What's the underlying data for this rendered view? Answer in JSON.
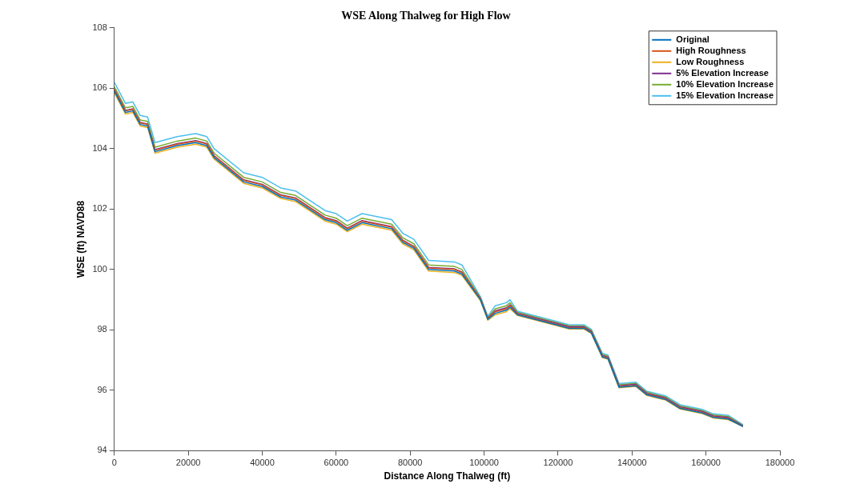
{
  "chart_data": {
    "type": "line",
    "title": "WSE Along Thalweg for High Flow",
    "xlabel": "Distance Along Thalweg (ft)",
    "ylabel": "WSE (ft) NAVD88",
    "x": [
      0,
      3000,
      5000,
      7000,
      9000,
      11000,
      17000,
      22000,
      25000,
      27000,
      35000,
      40000,
      45000,
      49000,
      57000,
      60000,
      63000,
      67000,
      75000,
      78000,
      81000,
      85000,
      92000,
      94000,
      99000,
      101000,
      103000,
      106000,
      107000,
      109000,
      120000,
      123000,
      127000,
      129000,
      132000,
      133500,
      136500,
      141000,
      144000,
      149000,
      153000,
      159000,
      162000,
      166000,
      170000
    ],
    "series": [
      {
        "name": "Original",
        "color": "#0072bd",
        "values": [
          105.9,
          105.2,
          105.25,
          104.8,
          104.75,
          103.9,
          104.1,
          104.2,
          104.1,
          103.7,
          102.9,
          102.75,
          102.4,
          102.3,
          101.65,
          101.55,
          101.3,
          101.55,
          101.35,
          100.9,
          100.7,
          100.0,
          99.95,
          99.85,
          99.0,
          98.35,
          98.55,
          98.65,
          98.75,
          98.5,
          98.15,
          98.05,
          98.05,
          97.9,
          97.1,
          97.05,
          96.1,
          96.15,
          95.85,
          95.7,
          95.4,
          95.25,
          95.1,
          95.05,
          94.8
        ]
      },
      {
        "name": "High Roughness",
        "color": "#d95319",
        "values": [
          105.95,
          105.25,
          105.3,
          104.85,
          104.8,
          103.95,
          104.15,
          104.25,
          104.15,
          103.75,
          102.95,
          102.8,
          102.45,
          102.35,
          101.7,
          101.6,
          101.35,
          101.6,
          101.4,
          100.95,
          100.75,
          100.05,
          100.0,
          99.9,
          99.03,
          98.38,
          98.6,
          98.7,
          98.8,
          98.52,
          98.17,
          98.07,
          98.07,
          97.92,
          97.12,
          97.07,
          96.12,
          96.17,
          95.87,
          95.72,
          95.42,
          95.27,
          95.12,
          95.07,
          94.8
        ]
      },
      {
        "name": "Low Roughness",
        "color": "#edb120",
        "values": [
          105.85,
          105.15,
          105.2,
          104.75,
          104.7,
          103.85,
          104.05,
          104.15,
          104.05,
          103.65,
          102.85,
          102.7,
          102.35,
          102.25,
          101.6,
          101.5,
          101.25,
          101.5,
          101.3,
          100.85,
          100.65,
          99.95,
          99.9,
          99.8,
          98.97,
          98.32,
          98.5,
          98.6,
          98.7,
          98.48,
          98.13,
          98.03,
          98.03,
          97.88,
          97.08,
          97.03,
          96.08,
          96.13,
          95.83,
          95.68,
          95.38,
          95.23,
          95.08,
          95.03,
          94.8
        ]
      },
      {
        "name": "5% Elevation Increase",
        "color": "#7e2f8e",
        "values": [
          105.97,
          105.27,
          105.32,
          104.87,
          104.82,
          103.97,
          104.17,
          104.27,
          104.17,
          103.77,
          102.97,
          102.82,
          102.47,
          102.37,
          101.72,
          101.62,
          101.37,
          101.62,
          101.42,
          100.97,
          100.77,
          100.07,
          100.02,
          99.92,
          99.04,
          98.39,
          98.63,
          98.73,
          98.83,
          98.55,
          98.2,
          98.1,
          98.1,
          97.95,
          97.15,
          97.1,
          96.15,
          96.2,
          95.9,
          95.75,
          95.45,
          95.3,
          95.15,
          95.1,
          94.82
        ]
      },
      {
        "name": "10% Elevation Increase",
        "color": "#77ac30",
        "values": [
          106.05,
          105.35,
          105.4,
          104.95,
          104.9,
          104.05,
          104.25,
          104.35,
          104.25,
          103.85,
          103.05,
          102.9,
          102.55,
          102.45,
          101.8,
          101.7,
          101.45,
          101.7,
          101.5,
          101.05,
          100.85,
          100.15,
          100.1,
          100.0,
          99.06,
          98.41,
          98.7,
          98.8,
          98.9,
          98.58,
          98.23,
          98.13,
          98.13,
          97.98,
          97.18,
          97.13,
          96.18,
          96.23,
          95.93,
          95.78,
          95.48,
          95.33,
          95.18,
          95.13,
          94.84
        ]
      },
      {
        "name": "15% Elevation Increase",
        "color": "#4dbeee",
        "values": [
          106.2,
          105.5,
          105.55,
          105.1,
          105.05,
          104.2,
          104.4,
          104.5,
          104.4,
          104.0,
          103.2,
          103.05,
          102.7,
          102.6,
          101.95,
          101.85,
          101.6,
          101.85,
          101.65,
          101.2,
          101.0,
          100.3,
          100.25,
          100.15,
          99.1,
          98.45,
          98.8,
          98.9,
          99.0,
          98.62,
          98.27,
          98.17,
          98.17,
          98.02,
          97.22,
          97.17,
          96.22,
          96.27,
          95.97,
          95.82,
          95.52,
          95.37,
          95.22,
          95.17,
          94.86
        ]
      }
    ],
    "xlim": [
      0,
      180000
    ],
    "xticks": [
      0,
      20000,
      40000,
      60000,
      80000,
      100000,
      120000,
      140000,
      160000,
      180000
    ],
    "ylim": [
      94,
      108
    ],
    "yticks": [
      94,
      96,
      98,
      100,
      102,
      104,
      106,
      108
    ],
    "grid": false,
    "legend": "top right",
    "marker": "none",
    "line_style": "solid"
  }
}
